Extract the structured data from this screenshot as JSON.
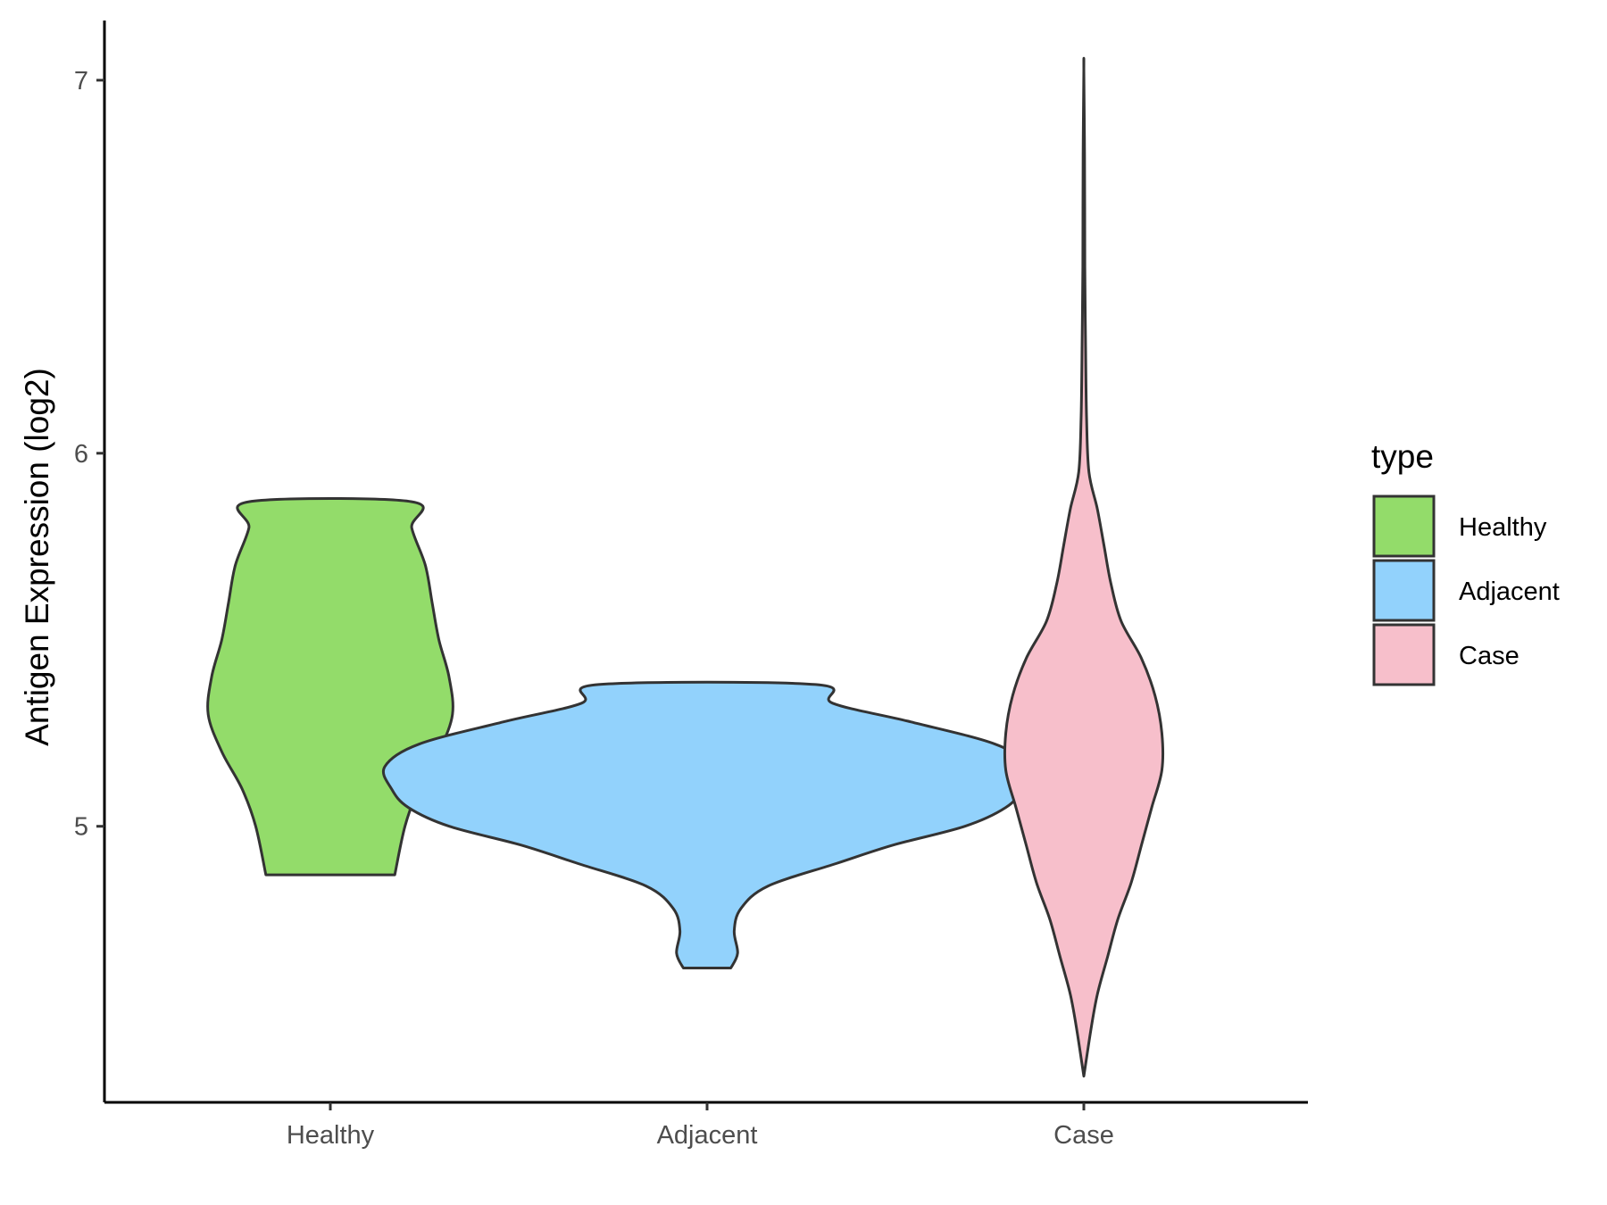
{
  "chart_data": {
    "type": "violin",
    "ylabel": "Antigen Expression (log2)",
    "xlabel": "",
    "categories": [
      "Healthy",
      "Adjacent",
      "Case"
    ],
    "y_ticks": [
      "5",
      "6",
      "7"
    ],
    "ylim": [
      4.26,
      7.16
    ],
    "grid": false,
    "legend": {
      "title": "type",
      "position": "right",
      "entries": [
        "Healthy",
        "Adjacent",
        "Case"
      ]
    },
    "series": [
      {
        "category": "Healthy",
        "color": "#93dc6a",
        "min": 4.87,
        "max": 5.87,
        "density_profile": [
          [
            4.87,
            0.19
          ],
          [
            5.0,
            0.22
          ],
          [
            5.1,
            0.26
          ],
          [
            5.2,
            0.32
          ],
          [
            5.3,
            0.36
          ],
          [
            5.4,
            0.35
          ],
          [
            5.5,
            0.32
          ],
          [
            5.6,
            0.3
          ],
          [
            5.7,
            0.28
          ],
          [
            5.8,
            0.24
          ],
          [
            5.87,
            0.24
          ]
        ]
      },
      {
        "category": "Adjacent",
        "color": "#92d2fc",
        "min": 4.62,
        "max": 5.38,
        "density_profile": [
          [
            4.62,
            0.07
          ],
          [
            4.66,
            0.09
          ],
          [
            4.72,
            0.08
          ],
          [
            4.78,
            0.1
          ],
          [
            4.84,
            0.18
          ],
          [
            4.9,
            0.38
          ],
          [
            4.95,
            0.55
          ],
          [
            5.0,
            0.76
          ],
          [
            5.05,
            0.88
          ],
          [
            5.1,
            0.93
          ],
          [
            5.16,
            0.95
          ],
          [
            5.22,
            0.85
          ],
          [
            5.28,
            0.6
          ],
          [
            5.33,
            0.37
          ],
          [
            5.38,
            0.32
          ]
        ]
      },
      {
        "category": "Case",
        "color": "#f7bfcb",
        "min": 4.33,
        "max": 7.03,
        "density_profile": [
          [
            4.33,
            0.0
          ],
          [
            4.45,
            0.02
          ],
          [
            4.55,
            0.04
          ],
          [
            4.65,
            0.07
          ],
          [
            4.75,
            0.1
          ],
          [
            4.85,
            0.14
          ],
          [
            4.95,
            0.17
          ],
          [
            5.05,
            0.2
          ],
          [
            5.15,
            0.23
          ],
          [
            5.25,
            0.23
          ],
          [
            5.35,
            0.21
          ],
          [
            5.45,
            0.17
          ],
          [
            5.55,
            0.11
          ],
          [
            5.65,
            0.08
          ],
          [
            5.75,
            0.06
          ],
          [
            5.85,
            0.04
          ],
          [
            5.95,
            0.015
          ],
          [
            6.1,
            0.008
          ],
          [
            6.3,
            0.005
          ],
          [
            6.5,
            0.003
          ],
          [
            6.8,
            0.002
          ],
          [
            7.03,
            0.0
          ]
        ]
      }
    ]
  }
}
